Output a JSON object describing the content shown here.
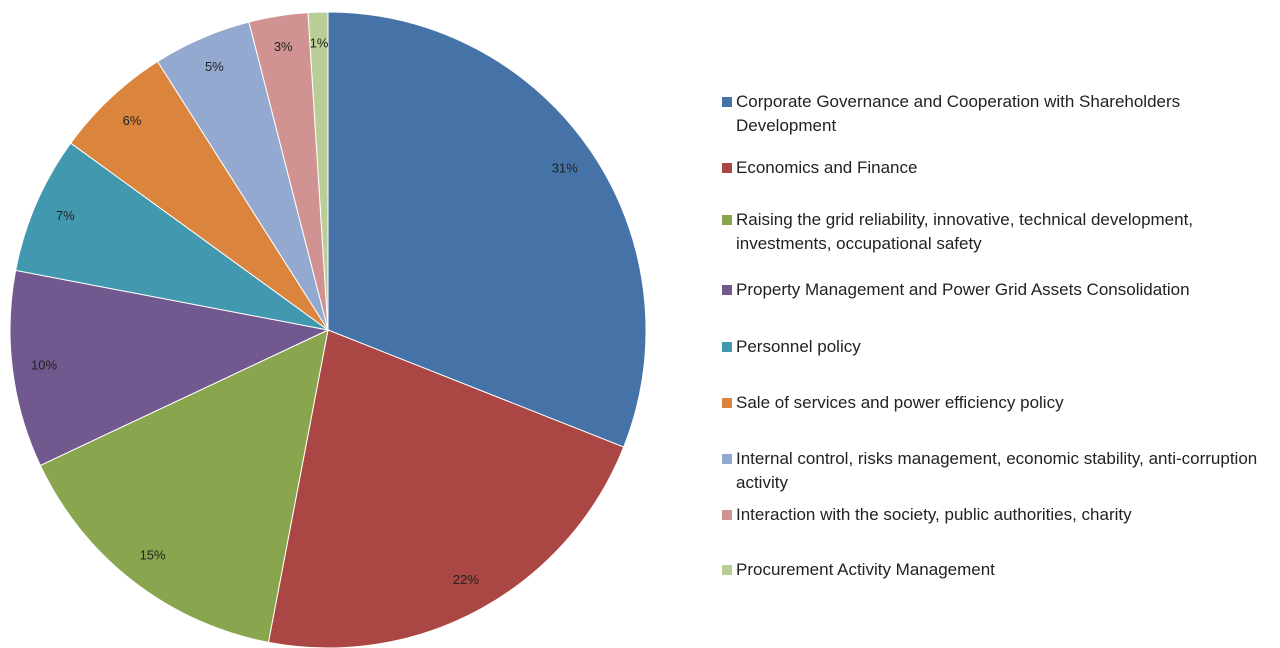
{
  "chart_data": {
    "type": "pie",
    "categories": [
      "Corporate Governance and Cooperation with Shareholders Development",
      "Economics and Finance",
      "Raising the grid reliability, innovative, technical development, investments, occupational safety",
      "Property Management and Power Grid Assets Consolidation",
      "Personnel policy",
      "Sale of services and power efficiency policy",
      "Internal control, risks management, economic stability, anti-corruption activity",
      "Interaction with the society, public authorities, charity",
      "Procurement Activity Management"
    ],
    "values": [
      31,
      22,
      15,
      10,
      7,
      6,
      5,
      3,
      1
    ],
    "value_labels": [
      "31%",
      "22%",
      "15%",
      "10%",
      "7%",
      "6%",
      "5%",
      "3%",
      "1%"
    ],
    "colors": [
      "#4572a7",
      "#aa4643",
      "#89a54e",
      "#71588f",
      "#4198af",
      "#db843d",
      "#93a9cf",
      "#d19392",
      "#b9cd96"
    ],
    "legend": "right"
  }
}
